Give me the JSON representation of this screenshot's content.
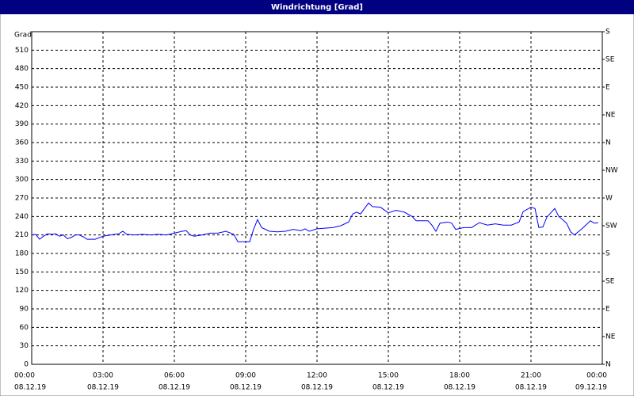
{
  "chart_data": {
    "type": "line",
    "title": "Windrichtung [Grad]",
    "y_label": "Grad",
    "x": [
      0,
      0.17,
      0.33,
      0.5,
      0.67,
      0.83,
      1,
      1.17,
      1.33,
      1.5,
      1.67,
      1.83,
      2,
      2.17,
      2.33,
      2.67,
      3,
      3.33,
      3.67,
      3.83,
      4,
      4.33,
      4.67,
      5,
      5.33,
      5.67,
      6,
      6.33,
      6.5,
      6.67,
      6.83,
      7.17,
      7.5,
      7.83,
      8.17,
      8.5,
      8.67,
      9,
      9.17,
      9.33,
      9.5,
      9.67,
      10,
      10.33,
      10.67,
      11,
      11.33,
      11.5,
      11.67,
      12,
      12.33,
      12.67,
      13,
      13.33,
      13.5,
      13.67,
      13.83,
      14,
      14.17,
      14.33,
      14.67,
      15,
      15.33,
      15.67,
      16,
      16.17,
      16.67,
      16.83,
      17,
      17.17,
      17.5,
      17.67,
      17.83,
      18.17,
      18.5,
      18.83,
      19.17,
      19.5,
      19.83,
      20.17,
      20.5,
      20.67,
      21,
      21.17,
      21.33,
      21.5,
      21.67,
      22,
      22.17,
      22.33,
      22.5,
      22.67,
      22.83,
      23.17,
      23.5,
      23.67,
      23.83
    ],
    "series": [
      {
        "name": "Windrichtung",
        "color": "#0000ff",
        "values": [
          210,
          211,
          203,
          208,
          212,
          211,
          212,
          208,
          210,
          204,
          206,
          210,
          210,
          207,
          203,
          203,
          208,
          210,
          212,
          216,
          211,
          210,
          211,
          210,
          211,
          210,
          213,
          216,
          217,
          210,
          208,
          210,
          213,
          213,
          216,
          211,
          199,
          199,
          199,
          219,
          235,
          222,
          216,
          215,
          216,
          219,
          217,
          220,
          216,
          220,
          221,
          222,
          225,
          231,
          244,
          247,
          244,
          253,
          262,
          256,
          255,
          246,
          250,
          247,
          240,
          233,
          233,
          226,
          216,
          229,
          231,
          229,
          219,
          222,
          222,
          230,
          226,
          228,
          226,
          226,
          231,
          248,
          255,
          253,
          222,
          223,
          239,
          253,
          240,
          235,
          229,
          215,
          210,
          221,
          233,
          229,
          230
        ]
      }
    ],
    "xlim": [
      0,
      24
    ],
    "xticks": [
      {
        "value": 0,
        "label": "00:00"
      },
      {
        "value": 3,
        "label": "03:00"
      },
      {
        "value": 6,
        "label": "06:00"
      },
      {
        "value": 9,
        "label": "09:00"
      },
      {
        "value": 12,
        "label": "12:00"
      },
      {
        "value": 15,
        "label": "15:00"
      },
      {
        "value": 18,
        "label": "18:00"
      },
      {
        "value": 21,
        "label": "21:00"
      },
      {
        "value": 24,
        "label": "00:00"
      }
    ],
    "xtick_dates": [
      "08.12.19",
      "08.12.19",
      "08.12.19",
      "08.12.19",
      "08.12.19",
      "08.12.19",
      "08.12.19",
      "08.12.19",
      "09.12.19"
    ],
    "ylim": [
      0,
      540
    ],
    "yticks": [
      0,
      30,
      60,
      90,
      120,
      150,
      180,
      210,
      240,
      270,
      300,
      330,
      360,
      390,
      420,
      450,
      480,
      510
    ],
    "y2lim": [
      0,
      540
    ],
    "y2ticks": [
      {
        "value": 0,
        "label": "N"
      },
      {
        "value": 45,
        "label": "NE"
      },
      {
        "value": 90,
        "label": "E"
      },
      {
        "value": 135,
        "label": "SE"
      },
      {
        "value": 180,
        "label": "S"
      },
      {
        "value": 225,
        "label": "SW"
      },
      {
        "value": 270,
        "label": "W"
      },
      {
        "value": 315,
        "label": "NW"
      },
      {
        "value": 360,
        "label": "N"
      },
      {
        "value": 405,
        "label": "NE"
      },
      {
        "value": 450,
        "label": "E"
      },
      {
        "value": 495,
        "label": "SE"
      },
      {
        "value": 540,
        "label": "S"
      }
    ],
    "grid": true
  }
}
